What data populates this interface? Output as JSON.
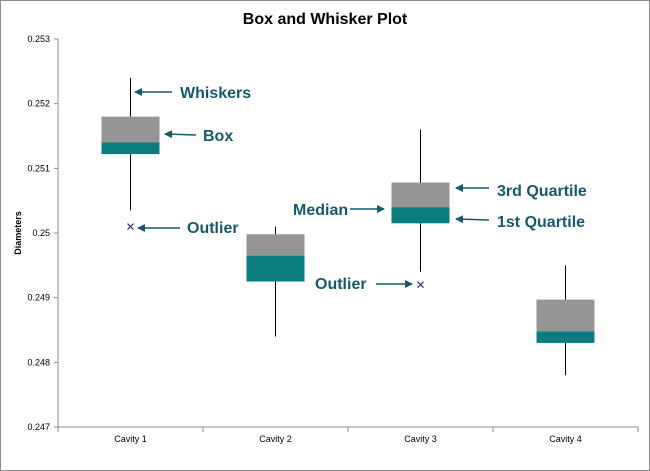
{
  "colors": {
    "upper_box": "#959595",
    "lower_box": "#0a7e7e",
    "outlier": "#3a2f8f",
    "annotation": "#15596b",
    "axis": "#8c8c8c",
    "whisker": "#000000"
  },
  "chart_data": {
    "type": "box",
    "title": "Box and Whisker Plot",
    "ylabel": "Diameters",
    "xlabel": "",
    "ylim": [
      0.247,
      0.253
    ],
    "yticks": [
      "0.247",
      "0.248",
      "0.249",
      "0.25",
      "0.251",
      "0.252",
      "0.253"
    ],
    "grid": false,
    "categories": [
      "Cavity 1",
      "Cavity 2",
      "Cavity 3",
      "Cavity 4"
    ],
    "boxes": [
      {
        "category": "Cavity 1",
        "min": 0.25035,
        "q1": 0.25122,
        "median": 0.2514,
        "q3": 0.2518,
        "max": 0.2524,
        "outliers": [
          0.2501
        ]
      },
      {
        "category": "Cavity 2",
        "min": 0.2484,
        "q1": 0.24925,
        "median": 0.24965,
        "q3": 0.24998,
        "max": 0.2501,
        "outliers": []
      },
      {
        "category": "Cavity 3",
        "min": 0.2494,
        "q1": 0.25015,
        "median": 0.2504,
        "q3": 0.25078,
        "max": 0.2516,
        "outliers": [
          0.2492
        ]
      },
      {
        "category": "Cavity 4",
        "min": 0.2478,
        "q1": 0.2483,
        "median": 0.24848,
        "q3": 0.24897,
        "max": 0.2495,
        "outliers": []
      }
    ],
    "annotations": [
      "Whiskers",
      "Box",
      "Outlier",
      "Median",
      "3rd Quartile",
      "1st Quartile",
      "Outlier"
    ]
  }
}
